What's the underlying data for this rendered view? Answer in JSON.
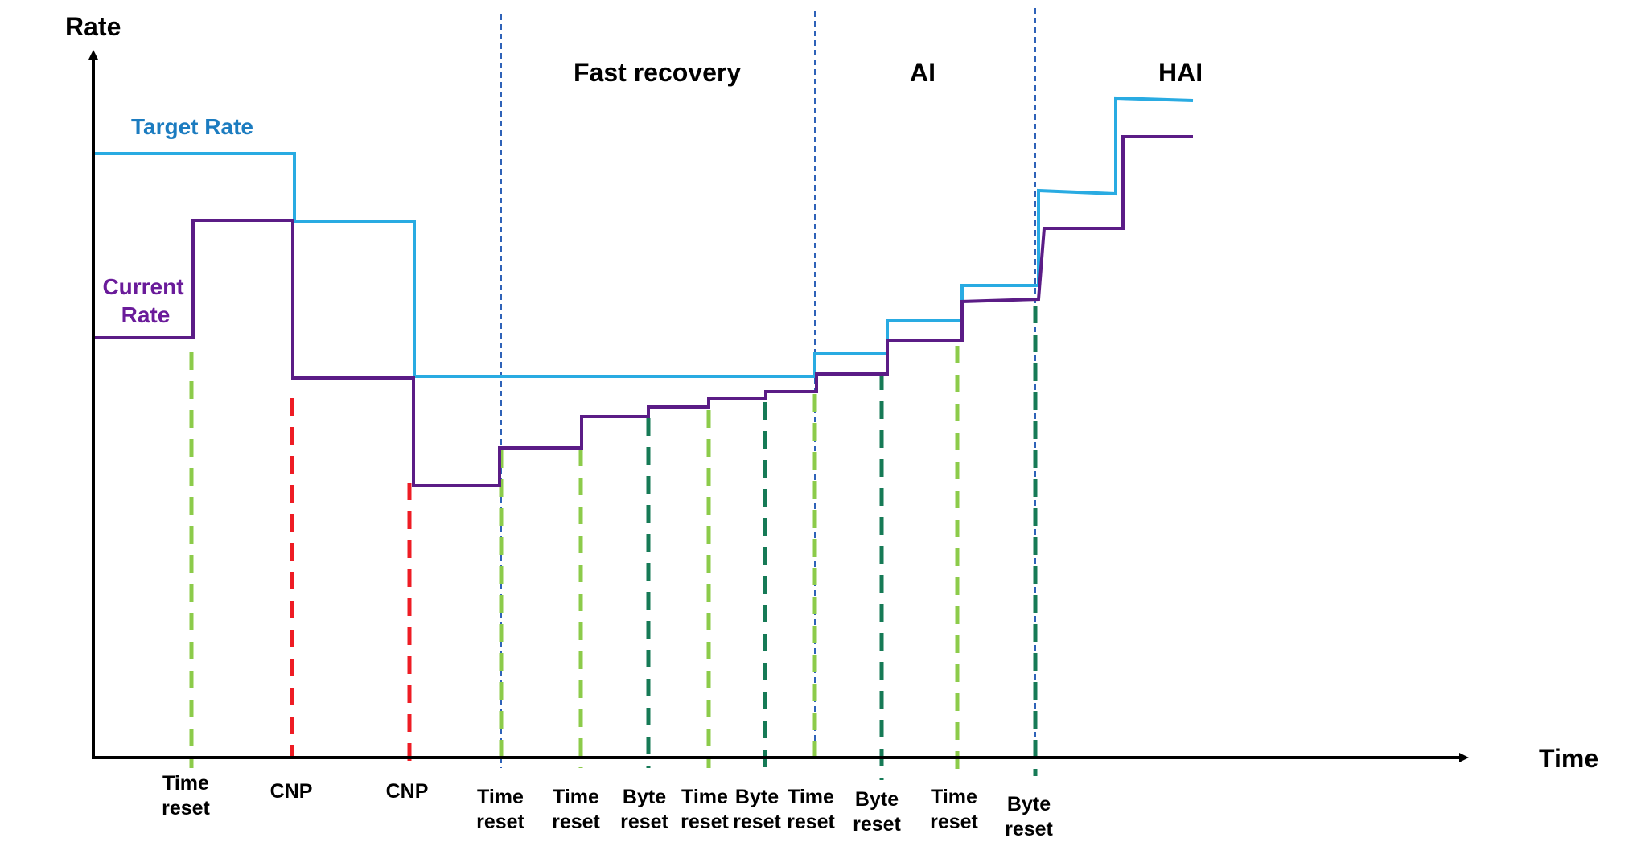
{
  "axes": {
    "y_title": "Rate",
    "x_title": "Time"
  },
  "phases": {
    "fast_recovery": "Fast recovery",
    "ai": "AI",
    "hai": "HAI"
  },
  "series": {
    "target_rate": {
      "label": "Target Rate",
      "color": "#29ABE2"
    },
    "current_rate": {
      "label_line1": "Current",
      "label_line2": "Rate",
      "color": "#5B1C86"
    }
  },
  "label_colors": {
    "target_rate": "#1C7CC0",
    "current_rate": "#6A1B9A"
  },
  "event_colors": {
    "time_reset": "#8CCB4A",
    "cnp": "#EE1C24",
    "byte_reset": "#167A56",
    "phase_divider": "#2E62B8"
  },
  "events": {
    "e1": {
      "kind": "time_reset",
      "line1": "Time",
      "line2": "reset"
    },
    "e2": {
      "kind": "cnp",
      "line1": "CNP"
    },
    "e3": {
      "kind": "cnp",
      "line1": "CNP"
    },
    "e4": {
      "kind": "time_reset",
      "line1": "Time",
      "line2": "reset"
    },
    "e5": {
      "kind": "time_reset",
      "line1": "Time",
      "line2": "reset"
    },
    "e6": {
      "kind": "byte_reset",
      "line1": "Byte",
      "line2": "reset"
    },
    "e7": {
      "kind": "time_reset",
      "line1": "Time",
      "line2": "reset"
    },
    "e8": {
      "kind": "byte_reset",
      "line1": "Byte",
      "line2": "reset"
    },
    "e9": {
      "kind": "time_reset",
      "line1": "Time",
      "line2": "reset"
    },
    "e10": {
      "kind": "byte_reset",
      "line1": "Byte",
      "line2": "reset"
    },
    "e11": {
      "kind": "time_reset",
      "line1": "Time",
      "line2": "reset"
    },
    "e12": {
      "kind": "byte_reset",
      "line1": "Byte",
      "line2": "reset"
    }
  }
}
